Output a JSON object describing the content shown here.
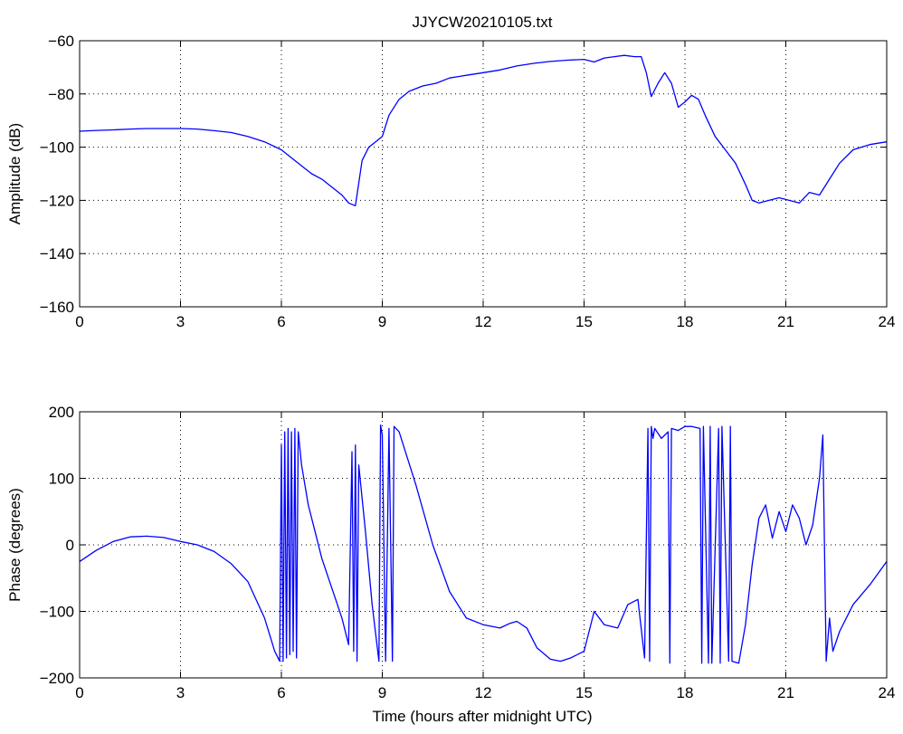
{
  "title": "JJYCW20210105.txt",
  "xlabel": "Time (hours after midnight UTC)",
  "chart_data": [
    {
      "type": "line",
      "title": "JJYCW20210105.txt",
      "xlabel": "",
      "ylabel": "Amplitude (dB)",
      "xlim": [
        0,
        24
      ],
      "ylim": [
        -160,
        -60
      ],
      "xticks": [
        0,
        3,
        6,
        9,
        12,
        15,
        18,
        21,
        24
      ],
      "yticks": [
        -160,
        -140,
        -120,
        -100,
        -80,
        -60
      ],
      "xtick_labels": [
        "0",
        "3",
        "6",
        "9",
        "12",
        "15",
        "18",
        "21",
        "24"
      ],
      "ytick_labels": [
        "−160",
        "−140",
        "−120",
        "−100",
        "−80",
        "−60"
      ],
      "grid": true,
      "color": "#0000ff",
      "series": [
        {
          "x": [
            0,
            0.5,
            1,
            1.5,
            2,
            2.5,
            3,
            3.5,
            4,
            4.5,
            5,
            5.5,
            6,
            6.3,
            6.6,
            6.9,
            7.2,
            7.5,
            7.8,
            8.0,
            8.2,
            8.4,
            8.6,
            8.8,
            9.0,
            9.2,
            9.5,
            9.8,
            10.2,
            10.6,
            11.0,
            11.5,
            12.0,
            12.5,
            13.0,
            13.5,
            14.0,
            14.5,
            15.0,
            15.3,
            15.6,
            15.9,
            16.2,
            16.5,
            16.7,
            16.85,
            17.0,
            17.2,
            17.4,
            17.6,
            17.8,
            18.0,
            18.2,
            18.4,
            18.6,
            18.9,
            19.2,
            19.5,
            19.8,
            20.0,
            20.2,
            20.5,
            20.8,
            21.1,
            21.4,
            21.7,
            22.0,
            22.3,
            22.6,
            23.0,
            23.5,
            24.0
          ],
          "y": [
            -94,
            -93.7,
            -93.5,
            -93.2,
            -93,
            -93,
            -93,
            -93.2,
            -93.8,
            -94.5,
            -96,
            -98,
            -101,
            -104,
            -107,
            -110,
            -112,
            -115,
            -118,
            -121,
            -122,
            -105,
            -100,
            -98,
            -96,
            -88,
            -82,
            -79,
            -77,
            -76,
            -74,
            -73,
            -72,
            -71,
            -69.5,
            -68.5,
            -67.8,
            -67.3,
            -67,
            -68,
            -66.5,
            -66,
            -65.5,
            -66,
            -66,
            -72,
            -81,
            -76,
            -72,
            -76,
            -85,
            -83,
            -80.5,
            -82,
            -88,
            -96,
            -101,
            -106,
            -114,
            -120,
            -121,
            -120,
            -119,
            -120,
            -121,
            -117,
            -118,
            -112,
            -106,
            -101,
            -99,
            -98
          ]
        }
      ]
    },
    {
      "type": "line",
      "title": "",
      "xlabel": "Time (hours after midnight UTC)",
      "ylabel": "Phase (degrees)",
      "xlim": [
        0,
        24
      ],
      "ylim": [
        -200,
        200
      ],
      "xticks": [
        0,
        3,
        6,
        9,
        12,
        15,
        18,
        21,
        24
      ],
      "yticks": [
        -200,
        -100,
        0,
        100,
        200
      ],
      "xtick_labels": [
        "0",
        "3",
        "6",
        "9",
        "12",
        "15",
        "18",
        "21",
        "24"
      ],
      "ytick_labels": [
        "−200",
        "−100",
        "0",
        "100",
        "200"
      ],
      "grid": true,
      "color": "#0000ff",
      "series": [
        {
          "x": [
            0,
            0.5,
            1,
            1.5,
            2,
            2.5,
            3,
            3.5,
            4,
            4.5,
            5,
            5.5,
            5.8,
            5.95,
            6.0,
            6.05,
            6.1,
            6.15,
            6.2,
            6.25,
            6.3,
            6.35,
            6.4,
            6.45,
            6.5,
            6.6,
            6.7,
            6.8,
            7.0,
            7.2,
            7.4,
            7.6,
            7.8,
            8.0,
            8.1,
            8.15,
            8.2,
            8.25,
            8.3,
            8.5,
            8.7,
            8.9,
            8.95,
            9.0,
            9.1,
            9.2,
            9.3,
            9.35,
            9.5,
            10.0,
            10.5,
            11.0,
            11.5,
            12.0,
            12.5,
            12.8,
            13.0,
            13.3,
            13.6,
            14.0,
            14.3,
            14.6,
            15.0,
            15.3,
            15.6,
            16.0,
            16.3,
            16.6,
            16.8,
            16.9,
            16.95,
            17.0,
            17.05,
            17.1,
            17.3,
            17.5,
            17.55,
            17.6,
            17.8,
            18.0,
            18.2,
            18.45,
            18.5,
            18.55,
            18.7,
            18.75,
            18.8,
            19.0,
            19.05,
            19.1,
            19.3,
            19.35,
            19.4,
            19.6,
            19.8,
            20.0,
            20.2,
            20.4,
            20.6,
            20.8,
            21.0,
            21.2,
            21.4,
            21.6,
            21.8,
            22.0,
            22.1,
            22.2,
            22.3,
            22.4,
            22.6,
            23.0,
            23.5,
            24.0
          ],
          "y": [
            -25,
            -8,
            5,
            12,
            13,
            11,
            5,
            0,
            -10,
            -28,
            -55,
            -110,
            -160,
            -175,
            150,
            -175,
            170,
            -170,
            175,
            -165,
            170,
            -160,
            175,
            -170,
            170,
            120,
            90,
            60,
            20,
            -20,
            -50,
            -80,
            -110,
            -150,
            140,
            -160,
            150,
            -175,
            120,
            20,
            -90,
            -175,
            180,
            165,
            -175,
            175,
            -175,
            178,
            170,
            90,
            0,
            -70,
            -110,
            -120,
            -125,
            -118,
            -115,
            -125,
            -155,
            -172,
            -175,
            -170,
            -160,
            -100,
            -120,
            -125,
            -90,
            -82,
            -170,
            175,
            -175,
            178,
            160,
            175,
            160,
            170,
            -178,
            175,
            172,
            178,
            178,
            175,
            -178,
            178,
            -178,
            178,
            -178,
            175,
            -178,
            178,
            -175,
            178,
            -175,
            -178,
            -120,
            -30,
            40,
            60,
            10,
            50,
            20,
            60,
            40,
            0,
            30,
            100,
            165,
            -175,
            -110,
            -160,
            -130,
            -90,
            -60,
            -25
          ]
        }
      ]
    }
  ]
}
